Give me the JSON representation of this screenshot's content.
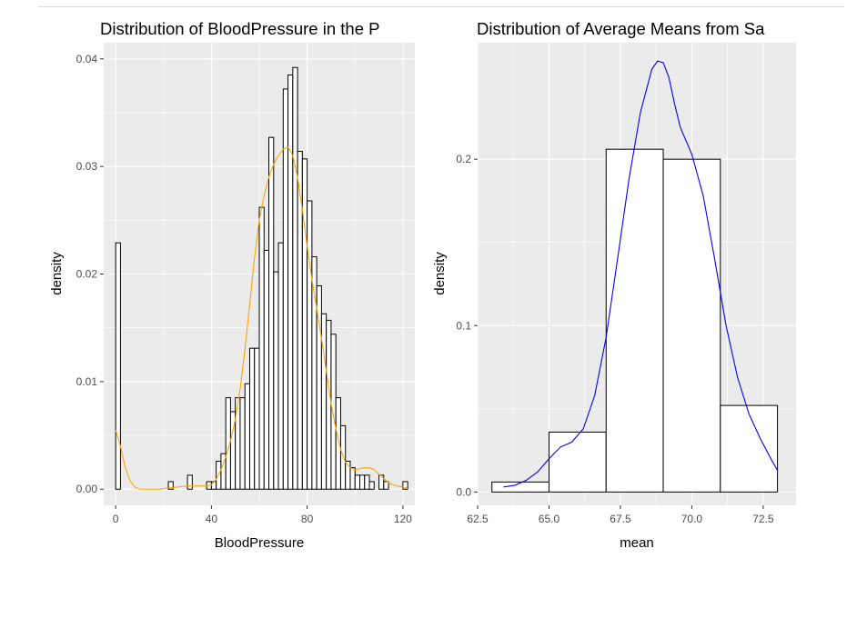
{
  "colors": {
    "panel_background": "#ebebeb",
    "grid_major": "#ffffff",
    "bar_fill": "#ffffff",
    "bar_outline": "#000000",
    "left_density_line": "#ffa500",
    "right_density_line": "#0000ff"
  },
  "chart_data": [
    {
      "type": "bar",
      "subtype": "histogram with density curve",
      "title": "Distribution of BloodPressure in the P",
      "xlabel": "BloodPressure",
      "ylabel": "density",
      "xlim": [
        -5,
        125
      ],
      "ylim": [
        -0.0015,
        0.0415
      ],
      "x_ticks": [
        0,
        40,
        80,
        120
      ],
      "x_tick_labels": [
        "0",
        "40",
        "80",
        "120"
      ],
      "y_ticks": [
        0,
        0.01,
        0.02,
        0.03,
        0.04
      ],
      "y_tick_labels": [
        "0.00",
        "0.01",
        "0.02",
        "0.03",
        "0.04"
      ],
      "grid": true,
      "legend": "none",
      "binwidth": 2,
      "bin_left_edges": [
        0,
        2,
        4,
        6,
        8,
        10,
        12,
        14,
        16,
        18,
        20,
        22,
        24,
        26,
        28,
        30,
        32,
        34,
        36,
        38,
        40,
        42,
        44,
        46,
        48,
        50,
        52,
        54,
        56,
        58,
        60,
        62,
        64,
        66,
        68,
        70,
        72,
        74,
        76,
        78,
        80,
        82,
        84,
        86,
        88,
        90,
        92,
        94,
        96,
        98,
        100,
        102,
        104,
        106,
        108,
        110,
        112,
        114,
        116,
        118,
        120
      ],
      "values": [
        0.0229,
        0,
        0,
        0,
        0,
        0,
        0,
        0,
        0,
        0,
        0,
        0.0007,
        0,
        0,
        0,
        0.0013,
        0,
        0,
        0,
        0.0007,
        0.0007,
        0.0026,
        0.0033,
        0.0085,
        0.0072,
        0.0085,
        0.0085,
        0.0098,
        0.0131,
        0.0131,
        0.0262,
        0.0222,
        0.0327,
        0.0202,
        0.0229,
        0.0372,
        0.0385,
        0.0392,
        0.0314,
        0.0307,
        0.0268,
        0.0216,
        0.0189,
        0.0163,
        0.0157,
        0.0144,
        0.0085,
        0.0059,
        0.0026,
        0.002,
        0.0013,
        0.0013,
        0.0013,
        0.0007,
        0,
        0.0013,
        0.0007,
        0,
        0,
        0,
        0.0007
      ],
      "density_curve": {
        "x": [
          0,
          2,
          4,
          6,
          8,
          10,
          14,
          18,
          22,
          26,
          30,
          34,
          38,
          40,
          42,
          44,
          46,
          48,
          50,
          52,
          54,
          56,
          58,
          60,
          62,
          64,
          66,
          68,
          70,
          72,
          74,
          76,
          78,
          80,
          82,
          84,
          86,
          88,
          90,
          92,
          94,
          96,
          98,
          100,
          102,
          104,
          106,
          108,
          110,
          112,
          114,
          116,
          118,
          120,
          122
        ],
        "y": [
          0.0055,
          0.004,
          0.002,
          0.0008,
          0.0002,
          0,
          0,
          0,
          0.0001,
          0.0002,
          0.0003,
          0.0003,
          0.0003,
          0.0004,
          0.0009,
          0.0018,
          0.003,
          0.0045,
          0.0065,
          0.0093,
          0.013,
          0.0172,
          0.0215,
          0.025,
          0.0273,
          0.029,
          0.0302,
          0.031,
          0.0316,
          0.0318,
          0.031,
          0.029,
          0.026,
          0.0226,
          0.0195,
          0.0168,
          0.014,
          0.011,
          0.008,
          0.0056,
          0.0037,
          0.0025,
          0.002,
          0.0018,
          0.0019,
          0.002,
          0.002,
          0.0018,
          0.0014,
          0.001,
          0.0006,
          0.0004,
          0.0003,
          0.0002,
          0.0001
        ]
      }
    },
    {
      "type": "bar",
      "subtype": "histogram with density curve",
      "title": "Distribution of Average Means from Sa",
      "xlabel": "mean",
      "ylabel": "density",
      "xlim": [
        62.5,
        73.65
      ],
      "ylim": [
        -0.008,
        0.27
      ],
      "x_ticks": [
        62.5,
        65.0,
        67.5,
        70.0,
        72.5
      ],
      "x_tick_labels": [
        "62.5",
        "65.0",
        "67.5",
        "70.0",
        "72.5"
      ],
      "y_ticks": [
        0,
        0.1,
        0.2
      ],
      "y_tick_labels": [
        "0.0",
        "0.1",
        "0.2"
      ],
      "grid": true,
      "legend": "none",
      "bins": [
        {
          "x0": 63,
          "x1": 65,
          "value": 0.006
        },
        {
          "x0": 65,
          "x1": 67,
          "value": 0.036
        },
        {
          "x0": 67,
          "x1": 69,
          "value": 0.206
        },
        {
          "x0": 69,
          "x1": 71,
          "value": 0.2
        },
        {
          "x0": 71,
          "x1": 73,
          "value": 0.052
        }
      ],
      "density_curve": {
        "x": [
          63.4,
          63.8,
          64.2,
          64.6,
          65.0,
          65.4,
          65.8,
          66.2,
          66.6,
          67.0,
          67.4,
          67.8,
          68.2,
          68.6,
          68.8,
          69.0,
          69.2,
          69.4,
          69.6,
          69.8,
          70.0,
          70.4,
          70.8,
          71.2,
          71.6,
          72.0,
          72.4,
          72.8,
          73.0
        ],
        "y": [
          0.003,
          0.004,
          0.007,
          0.012,
          0.02,
          0.027,
          0.03,
          0.038,
          0.058,
          0.093,
          0.14,
          0.188,
          0.228,
          0.254,
          0.259,
          0.258,
          0.249,
          0.233,
          0.219,
          0.211,
          0.203,
          0.178,
          0.14,
          0.1,
          0.069,
          0.047,
          0.032,
          0.019,
          0.013
        ]
      }
    }
  ]
}
